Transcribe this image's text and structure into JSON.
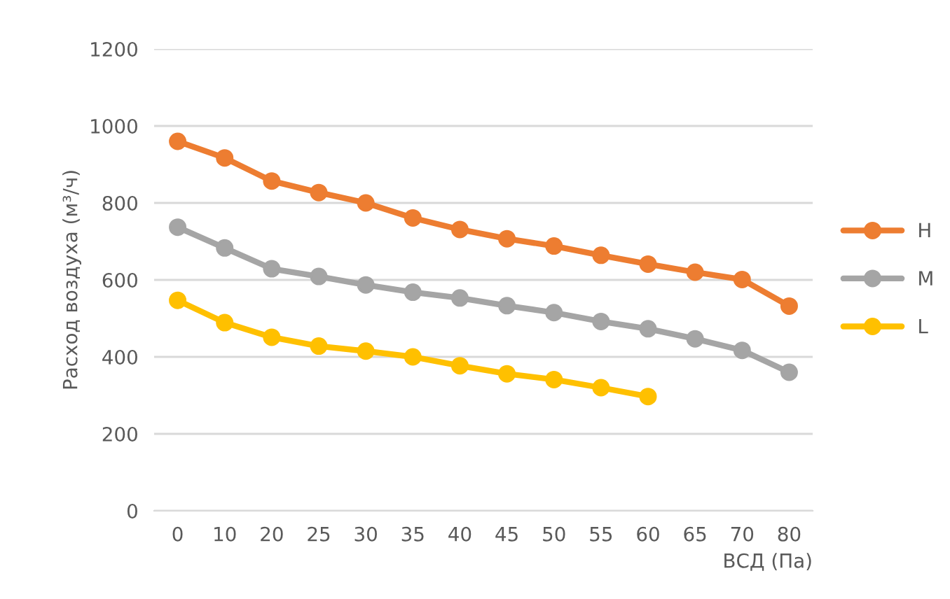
{
  "chart_data": {
    "type": "line",
    "xlabel": "ВСД (Па)",
    "ylabel": "Расход воздуха (м³/ч)",
    "categories": [
      "0",
      "10",
      "20",
      "25",
      "30",
      "35",
      "40",
      "45",
      "50",
      "55",
      "60",
      "65",
      "70",
      "80"
    ],
    "series": [
      {
        "name": "H",
        "color": "#ed7d31",
        "values": [
          960,
          917,
          857,
          827,
          800,
          761,
          731,
          707,
          688,
          664,
          641,
          620,
          601,
          532
        ]
      },
      {
        "name": "M",
        "color": "#a5a5a5",
        "values": [
          737,
          683,
          629,
          609,
          587,
          568,
          553,
          533,
          515,
          492,
          473,
          447,
          417,
          360
        ]
      },
      {
        "name": "L",
        "color": "#ffc000",
        "values": [
          547,
          489,
          451,
          428,
          415,
          400,
          377,
          356,
          341,
          320,
          297,
          null,
          null,
          null
        ]
      }
    ],
    "ylim": [
      0,
      1200
    ],
    "yticks": [
      0,
      200,
      400,
      600,
      800,
      1000,
      1200
    ],
    "grid": "y",
    "legend": "right",
    "marker": "circle",
    "line_style": "solid"
  }
}
